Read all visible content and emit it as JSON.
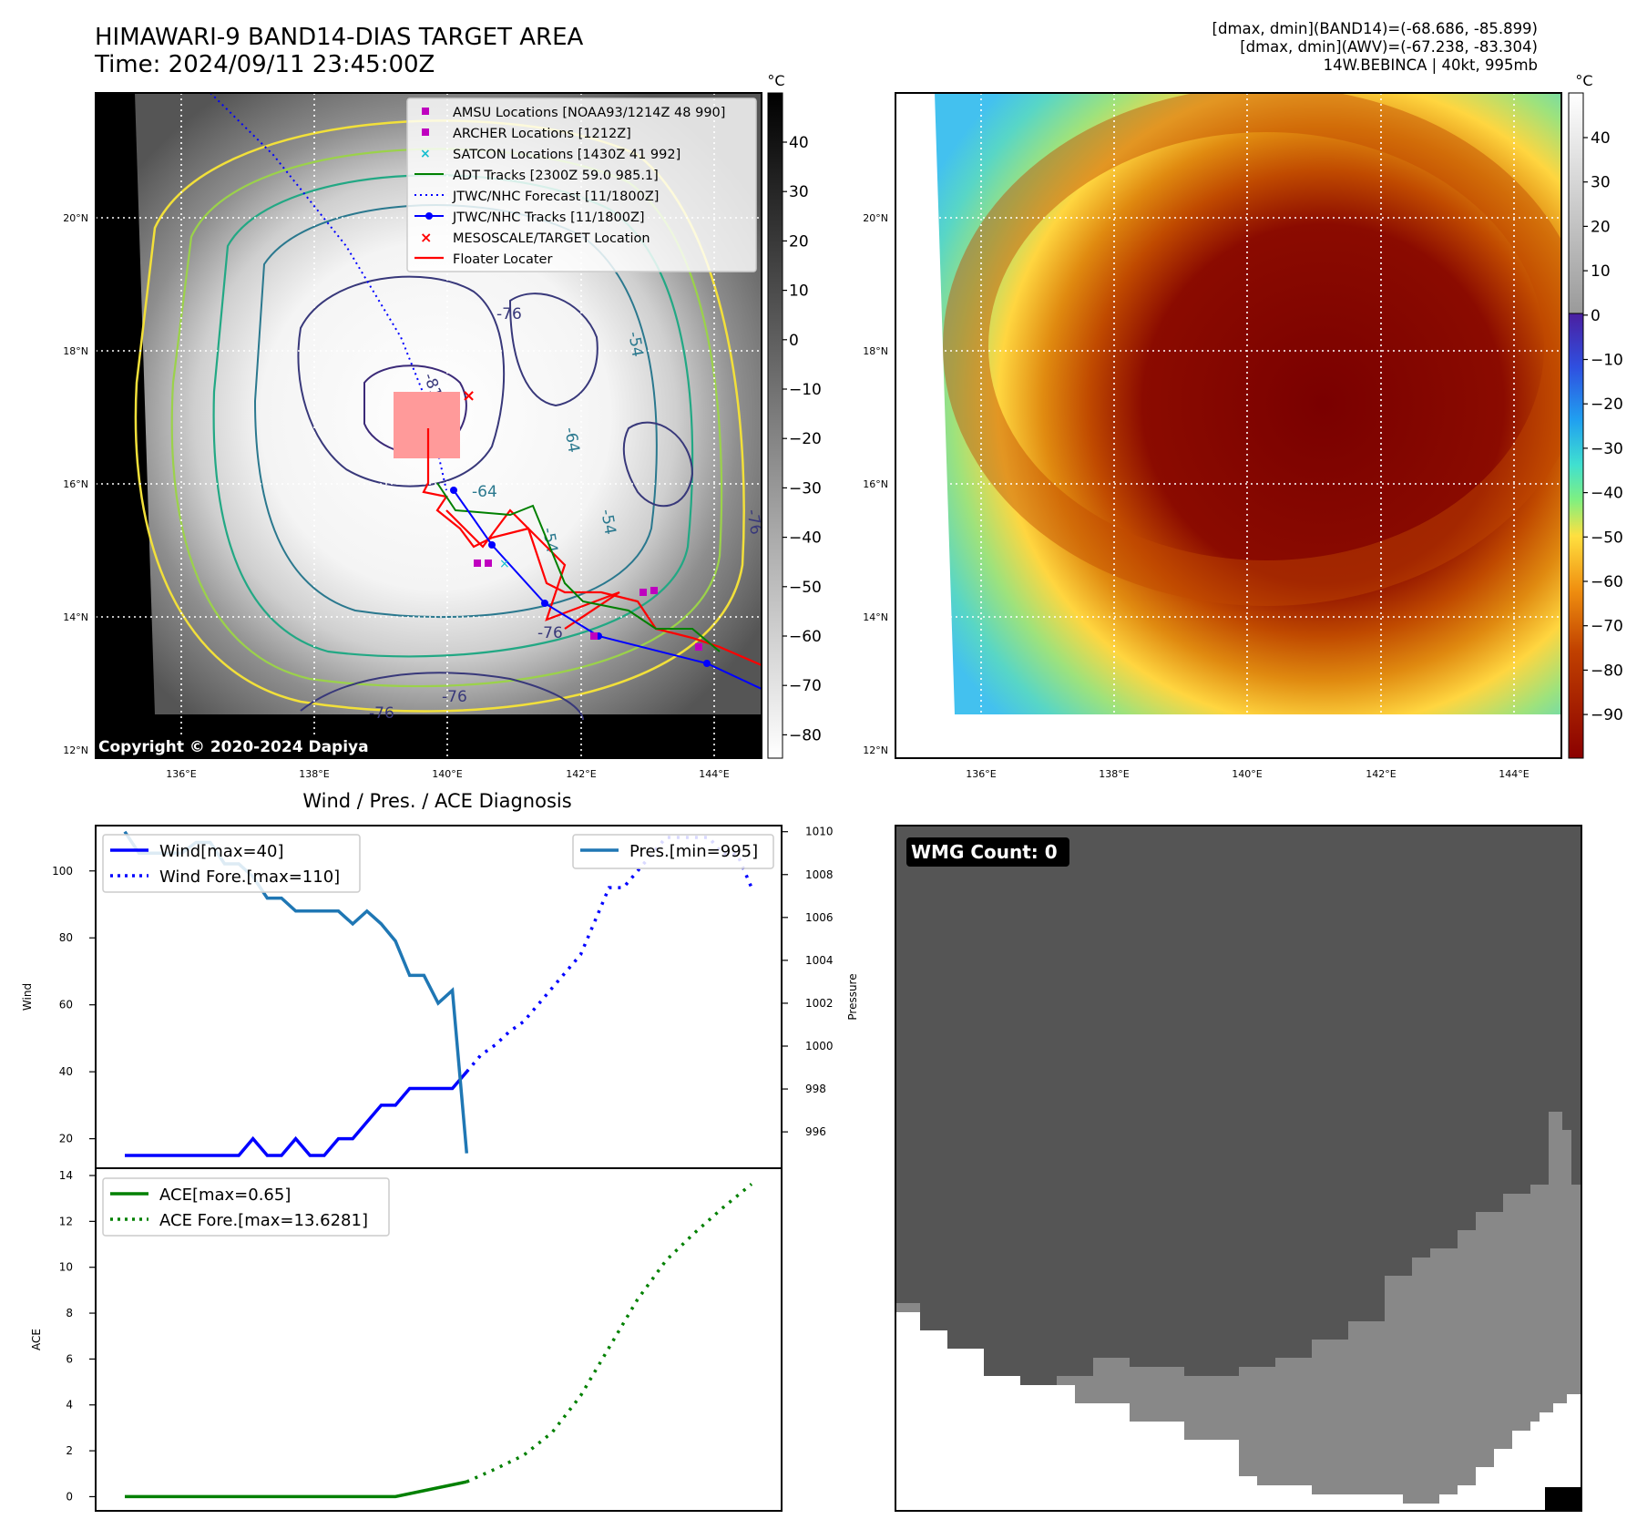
{
  "header": {
    "title_line1": "HIMAWARI-9 BAND14-DIAS TARGET AREA",
    "title_line2": "Time: 2024/09/11 23:45:00Z",
    "right_line1": "[dmax, dmin](BAND14)=(-68.686, -85.899)",
    "right_line2": "[dmax, dmin](AWV)=(-67.238, -83.304)",
    "right_line3": "14W.BEBINCA | 40kt, 995mb"
  },
  "map_axes": {
    "lat_labels": [
      "20°N",
      "18°N",
      "16°N",
      "14°N",
      "12°N"
    ],
    "lon_labels": [
      "136°E",
      "138°E",
      "140°E",
      "142°E",
      "144°E"
    ]
  },
  "left_map": {
    "copyright": "Copyright © 2020-2024 Dapiya",
    "colorbar_unit": "°C",
    "colorbar_ticks": [
      "40",
      "30",
      "20",
      "10",
      "0",
      "−10",
      "−20",
      "−30",
      "−40",
      "−50",
      "−60",
      "−70",
      "−80"
    ],
    "contour_labels": [
      "-81",
      "-76",
      "-64",
      "-54",
      "-76",
      "-76",
      "-54",
      "-64",
      "-76",
      "-76",
      "-54"
    ],
    "legend": [
      {
        "label": "AMSU Locations [NOAA93/1214Z 48 990]",
        "color": "#bf00bf"
      },
      {
        "label": "ARCHER Locations [1212Z]",
        "color": "#bf00bf"
      },
      {
        "label": "SATCON Locations [1430Z 41 992]",
        "color": "#17becf"
      },
      {
        "label": "ADT Tracks [2300Z 59.0 985.1]",
        "color": "#008000"
      },
      {
        "label": "JTWC/NHC Forecast [11/1800Z]",
        "color": "#0000ff"
      },
      {
        "label": "JTWC/NHC Tracks [11/1800Z]",
        "color": "#0000ff"
      },
      {
        "label": "MESOSCALE/TARGET Location",
        "color": "#ff0000"
      },
      {
        "label": "Floater Locater",
        "color": "#ff0000"
      }
    ]
  },
  "right_map": {
    "colorbar_unit": "°C",
    "colorbar_ticks": [
      "40",
      "30",
      "20",
      "10",
      "0",
      "−10",
      "−20",
      "−30",
      "−40",
      "−50",
      "−60",
      "−70",
      "−80",
      "−90"
    ]
  },
  "diagnosis": {
    "title": "Wind / Pres. / ACE Diagnosis",
    "wind_ylabel": "Wind",
    "pres_ylabel": "Pressure",
    "ace_ylabel": "ACE",
    "legend_wind": "Wind[max=40]",
    "legend_wind_fore": "Wind Fore.[max=110]",
    "legend_pres": "Pres.[min=995]",
    "legend_ace": "ACE[max=0.65]",
    "legend_ace_fore": "ACE Fore.[max=13.6281]",
    "wind_ticks": [
      "100",
      "80",
      "60",
      "40",
      "20"
    ],
    "pres_ticks": [
      "1010",
      "1008",
      "1006",
      "1004",
      "1002",
      "1000",
      "998",
      "996"
    ],
    "ace_ticks": [
      "14",
      "12",
      "10",
      "8",
      "6",
      "4",
      "2",
      "0"
    ]
  },
  "wmg": {
    "label": "WMG Count: 0"
  },
  "chart_data": [
    {
      "type": "line",
      "title": "Wind / Pres. / ACE Diagnosis",
      "x": [
        0,
        1,
        2,
        3,
        4,
        5,
        6,
        7,
        8,
        9,
        10,
        11,
        12,
        13,
        14,
        15,
        16,
        17,
        18,
        19,
        20,
        21,
        22,
        23,
        24
      ],
      "series": [
        {
          "name": "Wind[max=40]",
          "axis": "left",
          "x": [
            0,
            1,
            2,
            3,
            4,
            5,
            6,
            7,
            8,
            9,
            10,
            11,
            12,
            13,
            14,
            15,
            16,
            17,
            18,
            19,
            20,
            21,
            22,
            23,
            24
          ],
          "values": [
            15,
            15,
            15,
            15,
            15,
            15,
            15,
            15,
            15,
            20,
            15,
            15,
            20,
            15,
            15,
            20,
            20,
            25,
            30,
            30,
            35,
            35,
            35,
            35,
            40
          ]
        },
        {
          "name": "Wind Fore.[max=110]",
          "axis": "left",
          "x": [
            24,
            25,
            26,
            27,
            28,
            29,
            30,
            31,
            32,
            33,
            34,
            35,
            36,
            37,
            38,
            39,
            40,
            41,
            42,
            43,
            44
          ],
          "values": [
            40,
            45,
            48,
            52,
            55,
            60,
            65,
            70,
            75,
            85,
            95,
            95,
            100,
            105,
            110,
            110,
            110,
            110,
            105,
            105,
            95
          ]
        },
        {
          "name": "Pres.[min=995]",
          "axis": "right",
          "x": [
            0,
            1,
            2,
            3,
            4,
            5,
            6,
            7,
            8,
            9,
            10,
            11,
            12,
            13,
            14,
            15,
            16,
            17,
            18,
            19,
            20,
            21,
            22,
            23,
            24
          ],
          "values": [
            1010,
            1009,
            1009,
            1009,
            1009,
            1009.5,
            1009.5,
            1008.5,
            1008.5,
            1007.9,
            1006.9,
            1006.9,
            1006.3,
            1006.3,
            1006.3,
            1006.3,
            1005.7,
            1006.3,
            1005.7,
            1004.9,
            1003.3,
            1003.3,
            1002,
            1002.6,
            995
          ]
        }
      ],
      "ylim_left": [
        15,
        113
      ],
      "ylim_right": [
        994.9,
        1010.2
      ],
      "ylabel_left": "Wind",
      "ylabel_right": "Pressure"
    },
    {
      "type": "line",
      "x": [
        0,
        1,
        2,
        3,
        4,
        5,
        6,
        7,
        8,
        9,
        10,
        11,
        12,
        13,
        14,
        15,
        16,
        17,
        18,
        19,
        20,
        21,
        22,
        23,
        24,
        25,
        26,
        27,
        28,
        29,
        30,
        31,
        32,
        33,
        34,
        35,
        36,
        37,
        38,
        39,
        40,
        41,
        42,
        43,
        44
      ],
      "series": [
        {
          "name": "ACE[max=0.65]",
          "x": [
            0,
            19,
            24
          ],
          "values": [
            0,
            0,
            0.65
          ]
        },
        {
          "name": "ACE Fore.[max=13.6281]",
          "x": [
            24,
            26,
            28,
            30,
            32,
            34,
            36,
            38,
            40,
            42,
            44
          ],
          "values": [
            0.65,
            1.2,
            1.8,
            2.8,
            4.4,
            6.5,
            8.6,
            10.3,
            11.5,
            12.6,
            13.6281
          ]
        }
      ],
      "ylim": [
        -0.3,
        14
      ],
      "ylabel": "ACE"
    }
  ]
}
